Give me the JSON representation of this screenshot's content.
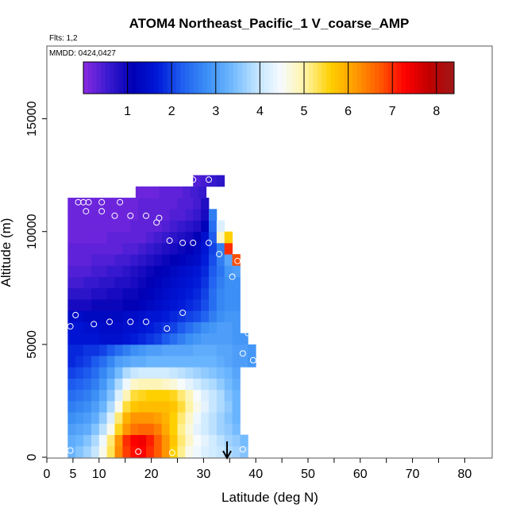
{
  "chart_data": {
    "type": "heatmap",
    "title": "ATOM4 Northeast_Pacific_1 V_coarse_AMP",
    "annotations": {
      "flights": "Flts: 1,2",
      "dates": "MMDD: 0424,0427"
    },
    "xlabel": "Latitude (deg N)",
    "ylabel": "Altitude (m)",
    "xlim": [
      0,
      85
    ],
    "ylim": [
      0,
      17500
    ],
    "xticks": [
      0,
      5,
      10,
      20,
      30,
      40,
      50,
      60,
      70,
      80
    ],
    "xtick_labels": [
      "0",
      "5",
      "10",
      "20",
      "30",
      "40",
      "50",
      "60",
      "70",
      "80"
    ],
    "xticks_minor": [
      15,
      25,
      35,
      45,
      55,
      65,
      75
    ],
    "yticks": [
      0,
      5000,
      10000,
      15000
    ],
    "ytick_labels": [
      "0",
      "5000",
      "10000",
      "15000"
    ],
    "colorbar": {
      "min": 0,
      "max": 8.4,
      "ticks": [
        1,
        2,
        3,
        4,
        5,
        6,
        7,
        8
      ],
      "tick_labels": [
        "1",
        "2",
        "3",
        "4",
        "5",
        "6",
        "7",
        "8"
      ],
      "palette": [
        "#8a2be2",
        "#3a1ad0",
        "#0000b5",
        "#0018d8",
        "#1f5ff0",
        "#3b8ff5",
        "#6fb8ff",
        "#bfe3ff",
        "#f7fbff",
        "#fff3a0",
        "#ffd000",
        "#ff9a00",
        "#ff5a00",
        "#ff0000",
        "#c00000",
        "#a01818"
      ]
    },
    "grid": false,
    "marker": {
      "latitude": 34.5,
      "symbol": "down-arrow"
    },
    "field": {
      "description": "gridded values by latitude x altitude",
      "lat_step": 1.5,
      "alt_step": 500,
      "rows": [
        {
          "alt": 0,
          "lat0": 4,
          "values": [
            3.3,
            3.5,
            3.7,
            4.0,
            4.6,
            5.3,
            6.3,
            6.9,
            7.2,
            7.3,
            7.0,
            6.7,
            6.2,
            5.6,
            5.1,
            4.6,
            4.4,
            4.2,
            4.1,
            4.0,
            3.8,
            3.7,
            3.5
          ]
        },
        {
          "alt": 500,
          "lat0": 4,
          "values": [
            3.2,
            3.3,
            3.5,
            3.8,
            4.4,
            5.2,
            6.2,
            7.0,
            7.3,
            7.4,
            7.1,
            6.7,
            6.2,
            5.7,
            5.2,
            4.8,
            4.5,
            4.3,
            4.1,
            3.9,
            3.7,
            3.6,
            3.4
          ]
        },
        {
          "alt": 1000,
          "lat0": 4,
          "values": [
            3.0,
            3.1,
            3.2,
            3.5,
            3.9,
            4.6,
            5.5,
            6.2,
            6.5,
            6.6,
            6.6,
            6.4,
            6.0,
            5.6,
            5.1,
            4.7,
            4.3,
            4.1,
            3.9,
            3.7,
            3.6,
            3.4
          ]
        },
        {
          "alt": 1500,
          "lat0": 4,
          "values": [
            2.8,
            2.9,
            3.0,
            3.2,
            3.6,
            4.2,
            5.2,
            5.9,
            6.2,
            6.2,
            6.2,
            6.1,
            5.9,
            5.6,
            5.2,
            4.8,
            4.4,
            4.1,
            3.9,
            3.7,
            3.5,
            3.3
          ]
        },
        {
          "alt": 2000,
          "lat0": 4,
          "values": [
            2.6,
            2.7,
            2.8,
            3.0,
            3.3,
            3.8,
            4.6,
            5.4,
            5.7,
            5.8,
            5.8,
            5.8,
            5.8,
            5.7,
            5.4,
            5.0,
            4.6,
            4.3,
            4.0,
            3.8,
            3.6,
            3.3
          ]
        },
        {
          "alt": 2500,
          "lat0": 4,
          "values": [
            2.4,
            2.5,
            2.6,
            2.8,
            3.1,
            3.5,
            4.2,
            4.9,
            5.4,
            5.5,
            5.6,
            5.6,
            5.6,
            5.5,
            5.2,
            4.9,
            4.5,
            4.2,
            4.0,
            3.8,
            3.5,
            3.3
          ]
        },
        {
          "alt": 3000,
          "lat0": 4,
          "values": [
            2.2,
            2.3,
            2.4,
            2.6,
            2.9,
            3.3,
            3.8,
            4.4,
            4.8,
            4.9,
            4.9,
            4.9,
            4.8,
            4.7,
            4.5,
            4.3,
            4.1,
            3.9,
            3.8,
            3.6,
            3.4,
            3.2
          ]
        },
        {
          "alt": 3500,
          "lat0": 4,
          "values": [
            2.0,
            2.1,
            2.2,
            2.4,
            2.7,
            3.0,
            3.4,
            3.8,
            4.0,
            4.1,
            4.1,
            4.1,
            4.1,
            4.0,
            3.9,
            3.8,
            3.7,
            3.6,
            3.5,
            3.4,
            3.3,
            3.1
          ]
        },
        {
          "alt": 4000,
          "lat0": 4,
          "values": [
            1.8,
            1.9,
            2.0,
            2.2,
            2.4,
            2.7,
            3.0,
            3.1,
            3.2,
            3.2,
            3.3,
            3.3,
            3.3,
            3.3,
            3.3,
            3.3,
            3.3,
            3.3,
            3.3,
            3.2,
            3.1,
            3.0,
            3.0,
            2.9
          ]
        },
        {
          "alt": 4500,
          "lat0": 4,
          "values": [
            1.8,
            1.8,
            1.9,
            1.9,
            2.0,
            2.2,
            2.4,
            2.6,
            2.8,
            2.9,
            3.0,
            3.0,
            3.1,
            3.1,
            3.1,
            3.1,
            3.2,
            3.2,
            3.2,
            3.1,
            3.1,
            3.0,
            3.0,
            2.9
          ]
        },
        {
          "alt": 5000,
          "lat0": 4,
          "values": [
            1.6,
            1.6,
            1.6,
            1.6,
            1.5,
            1.5,
            1.5,
            1.6,
            1.7,
            1.8,
            1.9,
            2.0,
            2.2,
            2.4,
            2.6,
            2.8,
            2.9,
            3.0,
            3.0,
            3.0,
            3.0,
            2.9,
            2.9
          ]
        },
        {
          "alt": 5500,
          "lat0": 4,
          "values": [
            1.6,
            1.6,
            1.5,
            1.5,
            1.4,
            1.4,
            1.4,
            1.5,
            1.5,
            1.6,
            1.7,
            1.8,
            1.9,
            2.0,
            2.2,
            2.4,
            2.6,
            2.8,
            2.9,
            3.0,
            3.0,
            2.9
          ]
        },
        {
          "alt": 6000,
          "lat0": 4,
          "values": [
            1.4,
            1.4,
            1.3,
            1.3,
            1.3,
            1.3,
            1.3,
            1.4,
            1.4,
            1.5,
            1.6,
            1.6,
            1.7,
            1.8,
            1.9,
            2.0,
            2.1,
            2.3,
            2.6,
            2.8,
            2.9,
            2.9
          ]
        },
        {
          "alt": 6500,
          "lat0": 4,
          "values": [
            0.9,
            0.9,
            0.9,
            1.0,
            1.0,
            1.0,
            1.0,
            1.1,
            1.1,
            1.2,
            1.3,
            1.4,
            1.5,
            1.6,
            1.7,
            1.8,
            1.9,
            2.1,
            2.4,
            2.7,
            2.8,
            2.8
          ]
        },
        {
          "alt": 7000,
          "lat0": 4,
          "values": [
            0.7,
            0.7,
            0.7,
            0.8,
            0.8,
            0.9,
            0.9,
            1.0,
            1.0,
            1.1,
            1.2,
            1.3,
            1.4,
            1.5,
            1.6,
            1.7,
            1.8,
            2.0,
            2.4,
            2.7,
            2.8,
            2.8
          ]
        },
        {
          "alt": 7500,
          "lat0": 4,
          "values": [
            0.5,
            0.5,
            0.6,
            0.6,
            0.7,
            0.7,
            0.8,
            0.8,
            0.9,
            1.0,
            1.1,
            1.2,
            1.3,
            1.4,
            1.5,
            1.6,
            1.7,
            1.9,
            2.3,
            2.6,
            2.8,
            2.8
          ]
        },
        {
          "alt": 8000,
          "lat0": 4,
          "values": [
            0.4,
            0.4,
            0.4,
            0.5,
            0.5,
            0.6,
            0.6,
            0.7,
            0.8,
            0.9,
            1.0,
            1.1,
            1.2,
            1.3,
            1.4,
            1.5,
            1.6,
            1.8,
            2.2,
            2.5,
            2.9,
            3.0
          ]
        },
        {
          "alt": 8500,
          "lat0": 4,
          "values": [
            0.3,
            0.3,
            0.3,
            0.4,
            0.4,
            0.4,
            0.5,
            0.5,
            0.6,
            0.7,
            0.8,
            0.9,
            1.0,
            1.1,
            1.2,
            1.3,
            1.4,
            1.7,
            2.1,
            2.6,
            3.1,
            6.8
          ]
        },
        {
          "alt": 9000,
          "lat0": 4,
          "values": [
            0.3,
            0.3,
            0.3,
            0.3,
            0.3,
            0.3,
            0.3,
            0.4,
            0.4,
            0.5,
            0.6,
            0.7,
            0.8,
            0.9,
            1.0,
            1.1,
            1.3,
            1.6,
            2.0,
            2.6,
            7.0
          ]
        },
        {
          "alt": 9500,
          "lat0": 4,
          "values": [
            0.2,
            0.2,
            0.2,
            0.2,
            0.2,
            0.3,
            0.3,
            0.3,
            0.3,
            0.3,
            0.4,
            0.5,
            0.6,
            0.7,
            0.8,
            0.9,
            1.1,
            1.5,
            2.2,
            4.8,
            5.6
          ]
        },
        {
          "alt": 10000,
          "lat0": 4,
          "values": [
            0.2,
            0.2,
            0.2,
            0.2,
            0.2,
            0.2,
            0.2,
            0.2,
            0.3,
            0.3,
            0.3,
            0.3,
            0.4,
            0.5,
            0.6,
            0.7,
            0.8,
            1.2,
            2.4,
            4.2
          ]
        },
        {
          "alt": 10500,
          "lat0": 4,
          "values": [
            0.2,
            0.2,
            0.2,
            0.2,
            0.2,
            0.2,
            0.2,
            0.2,
            0.2,
            0.3,
            0.3,
            0.3,
            0.3,
            0.4,
            0.4,
            0.5,
            0.6,
            0.9,
            2.6
          ]
        },
        {
          "alt": 11000,
          "lat0": 4,
          "values": [
            0.2,
            0.2,
            0.2,
            0.2,
            0.2,
            0.2,
            0.2,
            0.2,
            0.2,
            0.3,
            0.3,
            0.3,
            0.3,
            0.3,
            0.4,
            0.4,
            0.5,
            0.8
          ]
        },
        {
          "alt": 11500,
          "lat0": 17,
          "values": [
            0.2,
            0.2,
            0.2,
            0.3,
            0.3,
            0.3,
            0.4,
            0.5,
            0.6
          ]
        },
        {
          "alt": 12000,
          "lat0": 28,
          "values": [
            0.4,
            0.5,
            0.6,
            0.7
          ]
        }
      ]
    },
    "sample_points": [
      {
        "lat": 4.5,
        "alt": 300
      },
      {
        "lat": 17.5,
        "alt": 250
      },
      {
        "lat": 24,
        "alt": 200
      },
      {
        "lat": 37.5,
        "alt": 350
      },
      {
        "lat": 4.5,
        "alt": 5800
      },
      {
        "lat": 5.5,
        "alt": 6300
      },
      {
        "lat": 9,
        "alt": 5900
      },
      {
        "lat": 12,
        "alt": 6000
      },
      {
        "lat": 16,
        "alt": 6000
      },
      {
        "lat": 19,
        "alt": 6000
      },
      {
        "lat": 23,
        "alt": 5700
      },
      {
        "lat": 26,
        "alt": 6400
      },
      {
        "lat": 38.5,
        "alt": 5500
      },
      {
        "lat": 37.5,
        "alt": 4600
      },
      {
        "lat": 39.5,
        "alt": 4300
      },
      {
        "lat": 35.5,
        "alt": 8000
      },
      {
        "lat": 36.5,
        "alt": 8700
      },
      {
        "lat": 33,
        "alt": 9000
      },
      {
        "lat": 31,
        "alt": 9500
      },
      {
        "lat": 28,
        "alt": 9500
      },
      {
        "lat": 26,
        "alt": 9500
      },
      {
        "lat": 23.5,
        "alt": 9600
      },
      {
        "lat": 21,
        "alt": 10400
      },
      {
        "lat": 21.5,
        "alt": 10600
      },
      {
        "lat": 19,
        "alt": 10700
      },
      {
        "lat": 16,
        "alt": 10700
      },
      {
        "lat": 13,
        "alt": 10700
      },
      {
        "lat": 14,
        "alt": 11300
      },
      {
        "lat": 10.5,
        "alt": 10900
      },
      {
        "lat": 7.5,
        "alt": 10900
      },
      {
        "lat": 6,
        "alt": 11300
      },
      {
        "lat": 7,
        "alt": 11300
      },
      {
        "lat": 8,
        "alt": 11300
      },
      {
        "lat": 10.5,
        "alt": 11300
      },
      {
        "lat": 28,
        "alt": 12300
      },
      {
        "lat": 31,
        "alt": 12300
      }
    ]
  }
}
